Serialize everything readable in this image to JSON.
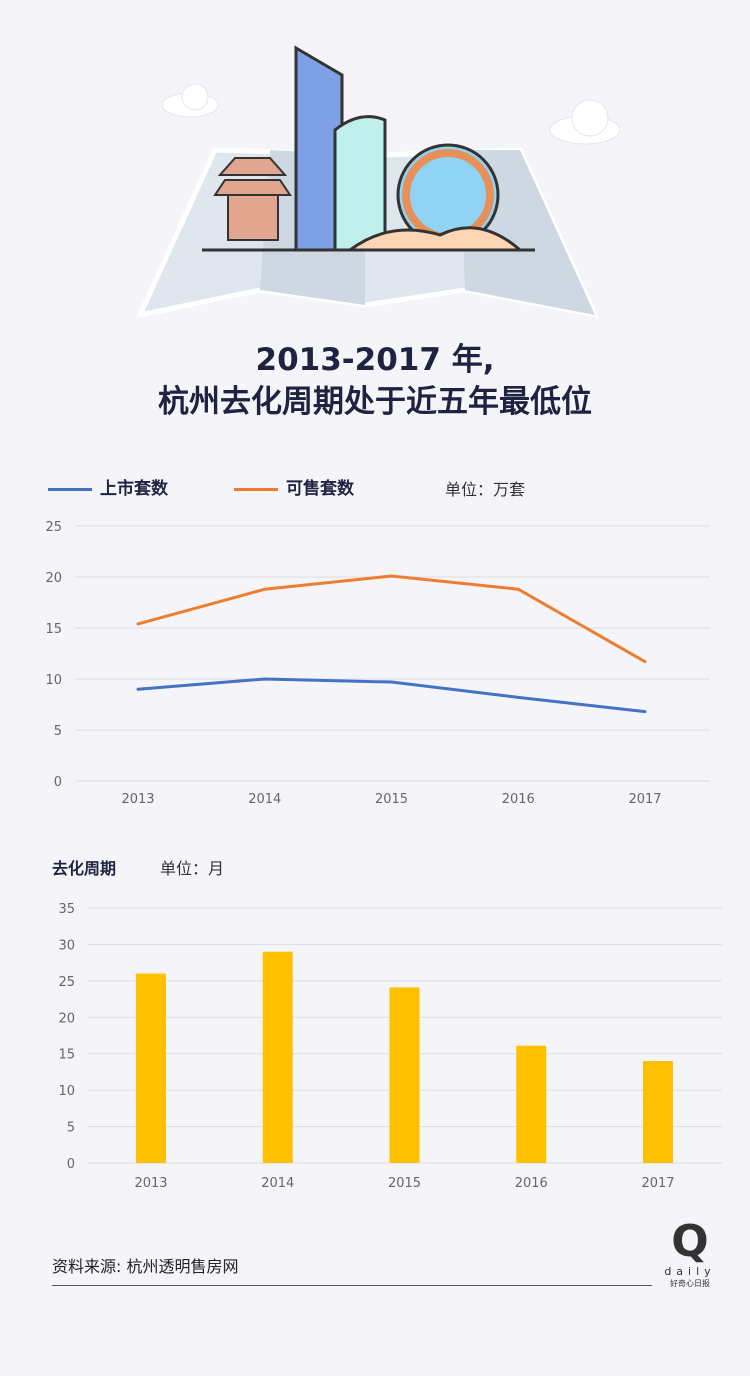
{
  "header": {
    "title_line1": "2013-2017 年,",
    "title_line2": "杭州去化周期处于近五年最低位"
  },
  "colors": {
    "series1": "#4472c4",
    "series2": "#ed7d31",
    "bar": "#ffc000",
    "text": "#1f2240"
  },
  "chart_data": [
    {
      "type": "line",
      "categories": [
        "2013",
        "2014",
        "2015",
        "2016",
        "2017"
      ],
      "series": [
        {
          "name": "上市套数",
          "values": [
            9.0,
            10.0,
            9.7,
            8.2,
            6.8
          ]
        },
        {
          "name": "可售套数",
          "values": [
            15.4,
            18.8,
            20.1,
            18.8,
            11.7
          ]
        }
      ],
      "unit": "单位：万套",
      "ylim": [
        0,
        25
      ],
      "yticks": [
        "0",
        "5",
        "10",
        "15",
        "20",
        "25"
      ],
      "legend": "top-left",
      "grid": true
    },
    {
      "type": "bar",
      "title": "去化周期",
      "unit": "单位：月",
      "categories": [
        "2013",
        "2014",
        "2015",
        "2016",
        "2017"
      ],
      "values": [
        26,
        29,
        24.1,
        16.1,
        14
      ],
      "ylim": [
        0,
        35
      ],
      "yticks": [
        "0",
        "5",
        "10",
        "15",
        "20",
        "25",
        "30",
        "35"
      ],
      "grid": true
    }
  ],
  "footer": {
    "source": "资料来源: 杭州透明售房网",
    "logo_letter": "Q",
    "logo_word": "daily",
    "logo_cn": "好奇心日报"
  }
}
